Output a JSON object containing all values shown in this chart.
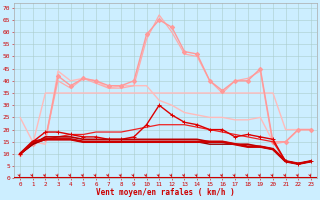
{
  "x": [
    0,
    1,
    2,
    3,
    4,
    5,
    6,
    7,
    8,
    9,
    10,
    11,
    12,
    13,
    14,
    15,
    16,
    17,
    18,
    19,
    20,
    21,
    22,
    23
  ],
  "background_color": "#cceeff",
  "grid_color": "#aacccc",
  "xlabel": "Vent moyen/en rafales ( km/h )",
  "ylabel_ticks": [
    0,
    5,
    10,
    15,
    20,
    25,
    30,
    35,
    40,
    45,
    50,
    55,
    60,
    65,
    70
  ],
  "ylim": [
    0,
    72
  ],
  "lines": [
    {
      "y": [
        25,
        15,
        14,
        44,
        40,
        41,
        40,
        37,
        38,
        38,
        38,
        32,
        30,
        27,
        26,
        25,
        25,
        24,
        24,
        25,
        15,
        15,
        20,
        20
      ],
      "color": "#ffbbbb",
      "marker": null,
      "lw": 1.0,
      "zorder": 2
    },
    {
      "y": [
        10,
        14,
        35,
        35,
        35,
        35,
        35,
        35,
        35,
        35,
        35,
        35,
        35,
        35,
        35,
        35,
        35,
        35,
        35,
        35,
        35,
        20,
        20,
        20
      ],
      "color": "#ffbbbb",
      "marker": null,
      "lw": 1.0,
      "zorder": 2
    },
    {
      "y": [
        10,
        14,
        16,
        42,
        38,
        41,
        40,
        38,
        38,
        40,
        59,
        65,
        62,
        52,
        51,
        40,
        36,
        40,
        40,
        45,
        15,
        15,
        20,
        20
      ],
      "color": "#ff9999",
      "marker": "D",
      "markersize": 2.2,
      "lw": 1.0,
      "zorder": 3
    },
    {
      "y": [
        10,
        15,
        16,
        40,
        37,
        41,
        39,
        37,
        37,
        38,
        57,
        67,
        60,
        51,
        50,
        40,
        35,
        40,
        41,
        44,
        14,
        15,
        20,
        20
      ],
      "color": "#ffaaaa",
      "marker": null,
      "lw": 0.9,
      "zorder": 2
    },
    {
      "y": [
        10,
        15,
        19,
        19,
        18,
        17,
        17,
        16,
        16,
        17,
        22,
        30,
        26,
        23,
        22,
        20,
        20,
        17,
        18,
        17,
        16,
        7,
        6,
        7
      ],
      "color": "#dd0000",
      "marker": "+",
      "markersize": 3.0,
      "lw": 1.0,
      "zorder": 4
    },
    {
      "y": [
        10,
        15,
        16,
        16,
        16,
        15,
        15,
        15,
        15,
        15,
        15,
        15,
        15,
        15,
        15,
        15,
        15,
        14,
        13,
        13,
        12,
        7,
        6,
        7
      ],
      "color": "#cc0000",
      "marker": null,
      "lw": 1.8,
      "zorder": 5
    },
    {
      "y": [
        10,
        14,
        17,
        17,
        17,
        16,
        16,
        16,
        16,
        16,
        16,
        16,
        16,
        16,
        16,
        15,
        15,
        14,
        14,
        13,
        12,
        7,
        6,
        7
      ],
      "color": "#bb0000",
      "marker": null,
      "lw": 1.2,
      "zorder": 4
    },
    {
      "y": [
        10,
        14,
        16,
        17,
        18,
        18,
        19,
        19,
        19,
        20,
        21,
        22,
        22,
        22,
        21,
        20,
        19,
        18,
        17,
        16,
        15,
        7,
        6,
        7
      ],
      "color": "#ee2222",
      "marker": null,
      "lw": 0.9,
      "zorder": 3
    },
    {
      "y": [
        10,
        14,
        16,
        16,
        16,
        15,
        15,
        15,
        15,
        15,
        15,
        15,
        15,
        15,
        15,
        14,
        14,
        14,
        13,
        13,
        12,
        7,
        6,
        7
      ],
      "color": "#990000",
      "marker": null,
      "lw": 1.0,
      "zorder": 4
    }
  ]
}
